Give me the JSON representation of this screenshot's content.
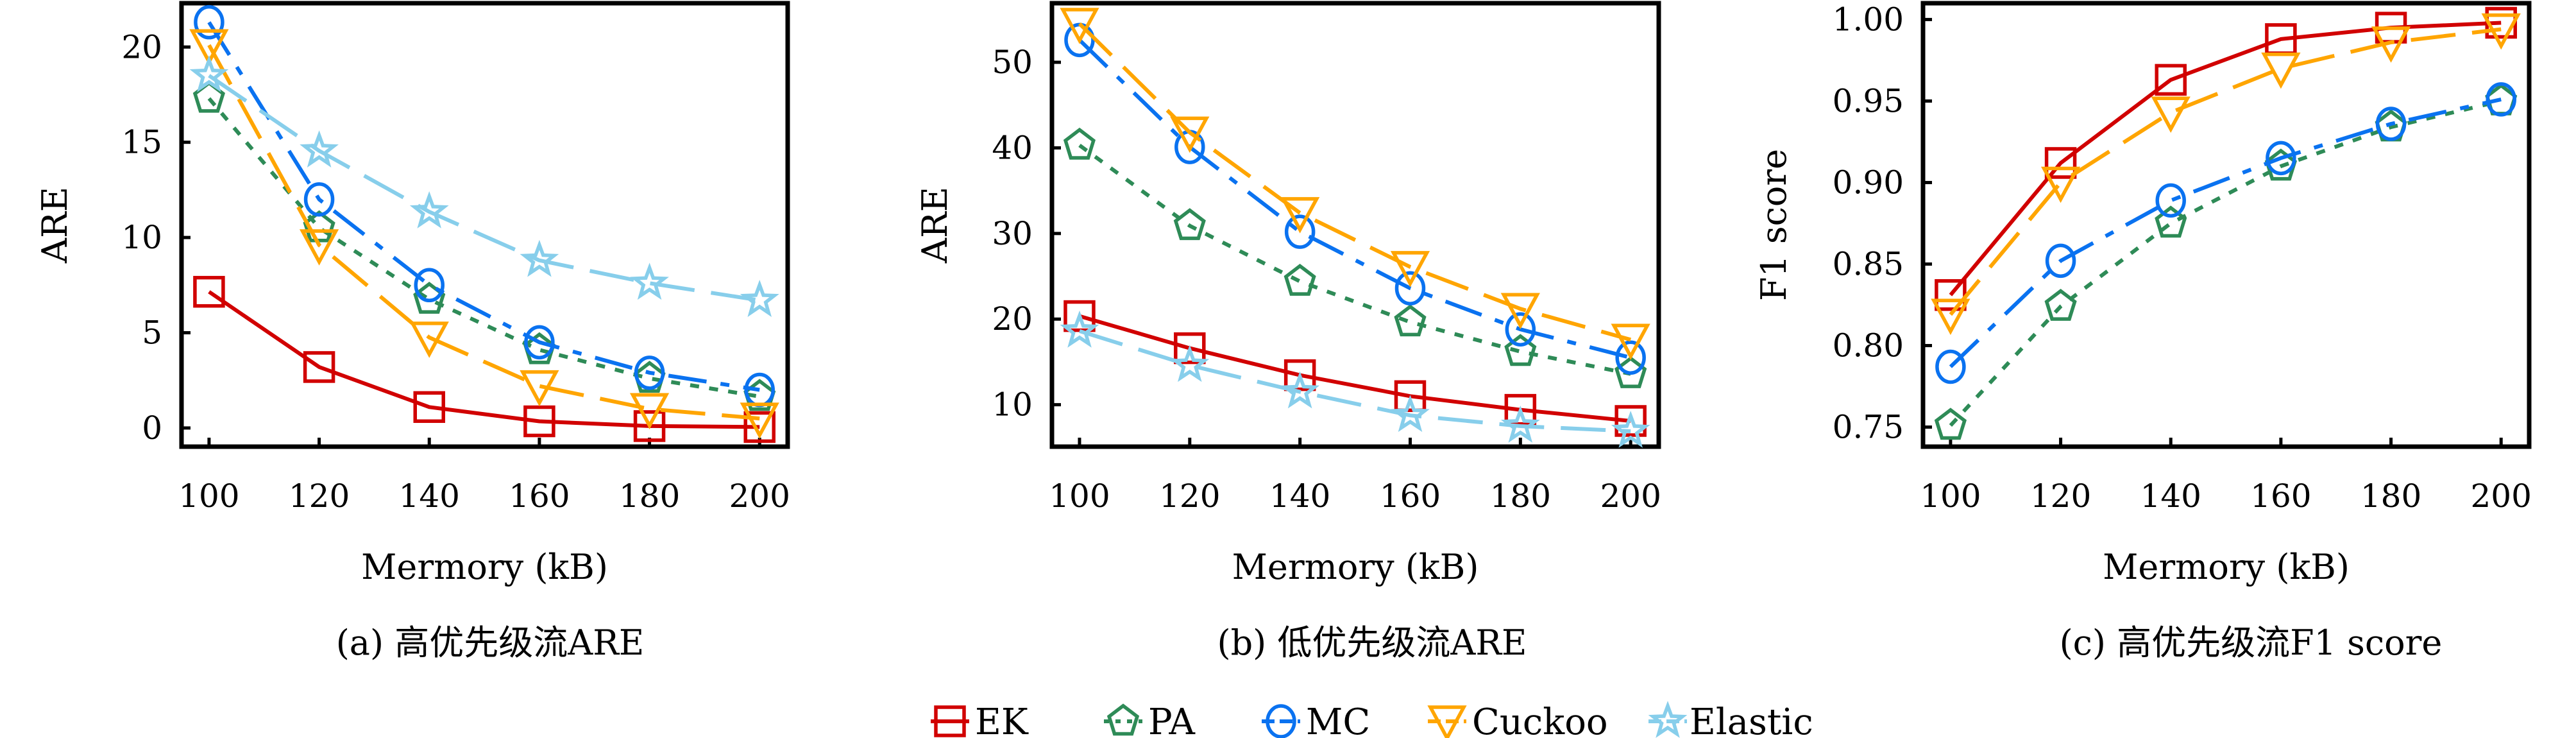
{
  "colors": {
    "EK": "#d10000",
    "PA": "#2e8b57",
    "MC": "#0a72f0",
    "Cuckoo": "#ffa500",
    "Elastic": "#87ceeb",
    "axis": "#000000"
  },
  "legend": [
    {
      "name": "EK",
      "marker": "square",
      "dash": "solid"
    },
    {
      "name": "PA",
      "marker": "pentagon",
      "dash": "short-dash"
    },
    {
      "name": "MC",
      "marker": "circle",
      "dash": "dash-dot"
    },
    {
      "name": "Cuckoo",
      "marker": "triangle-down",
      "dash": "long-dash"
    },
    {
      "name": "Elastic",
      "marker": "star",
      "dash": "long-dash"
    }
  ],
  "chart_data": [
    {
      "type": "line",
      "caption": "(a) 高优先级流ARE",
      "xlabel": "Mermory (kB)",
      "ylabel": "ARE",
      "x": [
        100,
        120,
        140,
        160,
        180,
        200
      ],
      "xticks": [
        "100",
        "120",
        "140",
        "160",
        "180",
        "200"
      ],
      "yticks": [
        "0",
        "5",
        "10",
        "15",
        "20"
      ],
      "ytick_values": [
        0,
        5,
        10,
        15,
        20
      ],
      "xlim": [
        95,
        205.1
      ],
      "ylim": [
        -0.98,
        22.3
      ],
      "grid": false,
      "series": [
        {
          "name": "EK",
          "values": [
            7.15,
            3.2,
            1.1,
            0.35,
            0.1,
            0.05
          ]
        },
        {
          "name": "PA",
          "values": [
            17.3,
            10.5,
            6.75,
            4.1,
            2.6,
            1.65
          ]
        },
        {
          "name": "MC",
          "values": [
            21.3,
            12.0,
            7.5,
            4.5,
            2.9,
            2.0
          ]
        },
        {
          "name": "Cuckoo",
          "values": [
            20.1,
            9.6,
            4.75,
            2.2,
            1.0,
            0.5
          ]
        },
        {
          "name": "Elastic",
          "values": [
            18.5,
            14.55,
            11.35,
            8.8,
            7.6,
            6.7
          ]
        }
      ]
    },
    {
      "type": "line",
      "caption": "(b) 低优先级流ARE",
      "xlabel": "Mermory (kB)",
      "ylabel": "ARE",
      "x": [
        100,
        120,
        140,
        160,
        180,
        200
      ],
      "xticks": [
        "100",
        "120",
        "140",
        "160",
        "180",
        "200"
      ],
      "yticks": [
        "10",
        "20",
        "30",
        "40",
        "50"
      ],
      "ytick_values": [
        10,
        20,
        30,
        40,
        50
      ],
      "xlim": [
        95,
        205.1
      ],
      "ylim": [
        5.1,
        56.9
      ],
      "grid": false,
      "series": [
        {
          "name": "EK",
          "values": [
            20.35,
            16.6,
            13.45,
            11.0,
            9.4,
            8.1
          ]
        },
        {
          "name": "PA",
          "values": [
            40.3,
            30.9,
            24.4,
            19.65,
            16.2,
            13.6
          ]
        },
        {
          "name": "MC",
          "values": [
            52.6,
            40.1,
            30.2,
            23.6,
            18.8,
            15.5
          ]
        },
        {
          "name": "Cuckoo",
          "values": [
            54.5,
            41.8,
            32.4,
            26.1,
            21.2,
            17.6
          ]
        },
        {
          "name": "Elastic",
          "values": [
            18.6,
            14.6,
            11.5,
            8.75,
            7.5,
            6.9
          ]
        }
      ]
    },
    {
      "type": "line",
      "caption": "(c) 高优先级流F1 score",
      "xlabel": "Mermory (kB)",
      "ylabel": "F1 score",
      "x": [
        100,
        120,
        140,
        160,
        180,
        200
      ],
      "xticks": [
        "100",
        "120",
        "140",
        "160",
        "180",
        "200"
      ],
      "yticks": [
        "0.75",
        "0.80",
        "0.85",
        "0.90",
        "0.95",
        "1.00"
      ],
      "ytick_values": [
        0.75,
        0.8,
        0.85,
        0.9,
        0.95,
        1.0
      ],
      "xlim": [
        95,
        205.1
      ],
      "ylim": [
        0.738,
        1.01
      ],
      "grid": false,
      "series": [
        {
          "name": "EK",
          "values": [
            0.831,
            0.912,
            0.963,
            0.988,
            0.995,
            0.998
          ]
        },
        {
          "name": "PA",
          "values": [
            0.751,
            0.824,
            0.875,
            0.91,
            0.934,
            0.95
          ]
        },
        {
          "name": "MC",
          "values": [
            0.787,
            0.852,
            0.889,
            0.915,
            0.936,
            0.951
          ]
        },
        {
          "name": "Cuckoo",
          "values": [
            0.819,
            0.9,
            0.943,
            0.97,
            0.986,
            0.994
          ]
        }
      ]
    }
  ]
}
